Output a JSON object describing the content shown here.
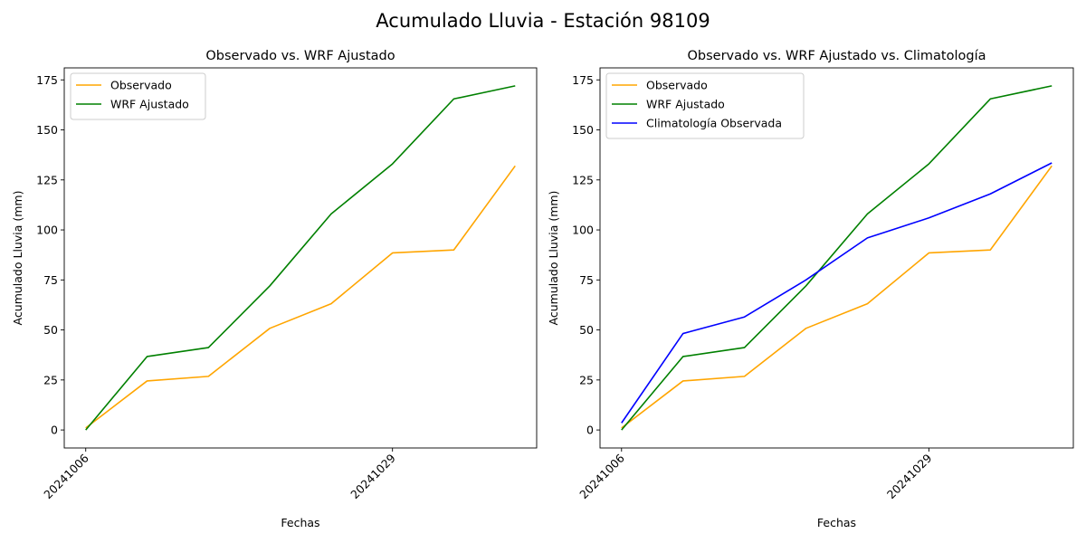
{
  "suptitle": "Acumulado Lluvia - Estación 98109",
  "chart_data": [
    {
      "type": "line",
      "title": "Observado vs. WRF Ajustado",
      "xlabel": "Fechas",
      "ylabel": "Acumulado Lluvia (mm)",
      "x": [
        0,
        1,
        2,
        3,
        4,
        5,
        6,
        7
      ],
      "xticks": [
        {
          "x": 0,
          "label": "20241006"
        },
        {
          "x": 5,
          "label": "20241029"
        }
      ],
      "xlim": [
        -0.35,
        7.35
      ],
      "ylim": [
        -9,
        181
      ],
      "yticks": [
        0,
        25,
        50,
        75,
        100,
        125,
        150,
        175
      ],
      "grid": false,
      "legend": "top-left",
      "series": [
        {
          "name": "Observado",
          "color": "#ffa500",
          "values": [
            1.0,
            24.5,
            26.8,
            50.8,
            63.1,
            88.5,
            90.0,
            132.0
          ]
        },
        {
          "name": "WRF Ajustado",
          "color": "#008000",
          "values": [
            0.0,
            36.7,
            41.2,
            72.0,
            108.0,
            133.0,
            165.5,
            172.0
          ]
        }
      ]
    },
    {
      "type": "line",
      "title": "Observado vs. WRF Ajustado vs. Climatología",
      "xlabel": "Fechas",
      "ylabel": "Acumulado Lluvia (mm)",
      "x": [
        0,
        1,
        2,
        3,
        4,
        5,
        6,
        7
      ],
      "xticks": [
        {
          "x": 0,
          "label": "20241006"
        },
        {
          "x": 5,
          "label": "20241029"
        }
      ],
      "xlim": [
        -0.35,
        7.35
      ],
      "ylim": [
        -9,
        181
      ],
      "yticks": [
        0,
        25,
        50,
        75,
        100,
        125,
        150,
        175
      ],
      "grid": false,
      "legend": "top-left",
      "series": [
        {
          "name": "Observado",
          "color": "#ffa500",
          "values": [
            1.0,
            24.5,
            26.8,
            50.8,
            63.1,
            88.5,
            90.0,
            132.0
          ]
        },
        {
          "name": "WRF Ajustado",
          "color": "#008000",
          "values": [
            0.0,
            36.7,
            41.2,
            72.0,
            108.0,
            133.0,
            165.5,
            172.0
          ]
        },
        {
          "name": "Climatología Observada",
          "color": "#0000ff",
          "values": [
            3.5,
            48.2,
            56.5,
            75.0,
            96.0,
            106.0,
            118.0,
            133.5
          ]
        }
      ]
    }
  ]
}
